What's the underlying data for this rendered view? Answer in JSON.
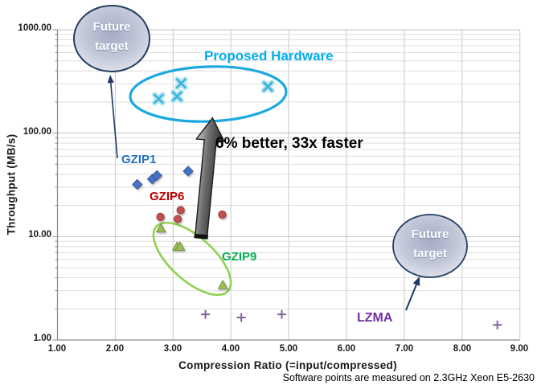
{
  "chart_data": {
    "type": "scatter",
    "title": "",
    "xlabel": "Compression Ratio  (=input/compressed)",
    "ylabel": "Throughput (MB/s)",
    "x_axis": {
      "scale": "linear",
      "min": 1,
      "max": 9,
      "tick_labels": [
        "1.00",
        "2.00",
        "3.00",
        "4.00",
        "5.00",
        "6.00",
        "7.00",
        "8.00",
        "9.00"
      ]
    },
    "y_axis": {
      "scale": "log",
      "min": 1,
      "max": 1000,
      "tick_labels": [
        "1000.00",
        "100.00",
        "10.00",
        "1.00"
      ]
    },
    "grid": true,
    "legend": "none",
    "series": [
      {
        "name": "GZIP1",
        "marker": "diamond",
        "color": "#4472C4",
        "edge_color": "#2C4F8F",
        "label_color": "#2272C3",
        "points": [
          [
            2.38,
            32
          ],
          [
            2.64,
            36
          ],
          [
            2.72,
            39
          ],
          [
            3.26,
            43
          ]
        ]
      },
      {
        "name": "GZIP6",
        "marker": "circle",
        "color": "#C0504D",
        "edge_color": "#8F3835",
        "label_color": "#C00000",
        "points": [
          [
            2.78,
            15.5
          ],
          [
            3.08,
            14.8
          ],
          [
            3.13,
            18
          ],
          [
            3.85,
            16.3
          ]
        ]
      },
      {
        "name": "GZIP9",
        "marker": "triangle",
        "color": "#9BBB59",
        "edge_color": "#71893F",
        "label_color": "#00B050",
        "points": [
          [
            2.79,
            12
          ],
          [
            3.07,
            8
          ],
          [
            3.12,
            8
          ],
          [
            3.86,
            3.4
          ]
        ]
      },
      {
        "name": "LZMA",
        "marker": "plus",
        "color": "#8064A2",
        "edge_color": "#8064A2",
        "label_color": "#7030A0",
        "points": [
          [
            3.56,
            1.77
          ],
          [
            4.18,
            1.65
          ],
          [
            4.88,
            1.77
          ],
          [
            8.61,
            1.4
          ]
        ]
      },
      {
        "name": "Proposed Hardware",
        "marker": "x",
        "color": "#3FB3DC",
        "glow_color": "#ABE0F2",
        "label_color": "#00AEEF",
        "points": [
          [
            2.75,
            215
          ],
          [
            3.07,
            227
          ],
          [
            3.14,
            303
          ],
          [
            4.64,
            282
          ]
        ]
      }
    ],
    "annotations": {
      "comparison": "6% better, 33x faster",
      "future_target": {
        "line1": "Future",
        "line2": "target"
      },
      "footnote": "Software  points are measured on 2.3GHz Xeon E5-2630",
      "proposed_ellipse_color": "#1BA9E0",
      "gzip9_ellipse_color": "#8FD14F",
      "balloon_border_color": "#243F60",
      "balloon_fill_colors": [
        "#A4ABC5",
        "#C3C8D8",
        "#EAEBF3"
      ],
      "thin_arrow_color": "#1F3864",
      "big_arrow_colors": [
        "#C9C9C9",
        "#6E6E6E",
        "#262626"
      ],
      "grid_minor_color": "#DEDEDE",
      "grid_major_color": "#C2C2C2",
      "axis_color": "#8A8A8A"
    }
  }
}
